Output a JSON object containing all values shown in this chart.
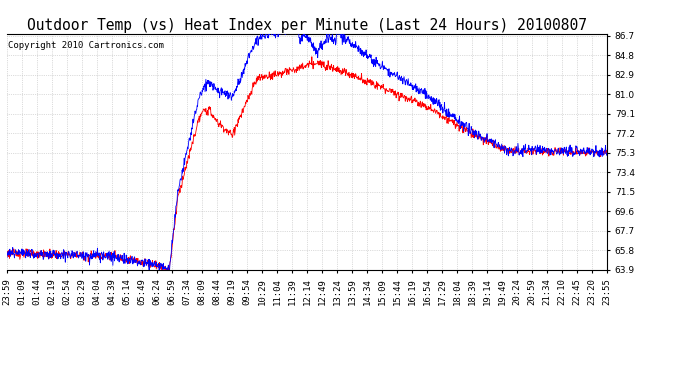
{
  "title": "Outdoor Temp (vs) Heat Index per Minute (Last 24 Hours) 20100807",
  "copyright": "Copyright 2010 Cartronics.com",
  "ymin": 63.9,
  "ymax": 86.7,
  "ytick_step": 1.9,
  "background_color": "#ffffff",
  "grid_color": "#bbbbbb",
  "line_color_red": "#ff0000",
  "line_color_blue": "#0000ff",
  "x_labels": [
    "23:59",
    "01:09",
    "01:44",
    "02:19",
    "02:54",
    "03:29",
    "04:04",
    "04:39",
    "05:14",
    "05:49",
    "06:24",
    "06:59",
    "07:34",
    "08:09",
    "08:44",
    "09:19",
    "09:54",
    "10:29",
    "11:04",
    "11:39",
    "12:14",
    "12:49",
    "13:24",
    "13:59",
    "14:34",
    "15:09",
    "15:44",
    "16:19",
    "16:54",
    "17:29",
    "18:04",
    "18:39",
    "19:14",
    "19:49",
    "20:24",
    "20:59",
    "21:34",
    "22:10",
    "22:45",
    "23:20",
    "23:55"
  ],
  "title_fontsize": 10.5,
  "tick_fontsize": 6.5,
  "copyright_fontsize": 6.5
}
